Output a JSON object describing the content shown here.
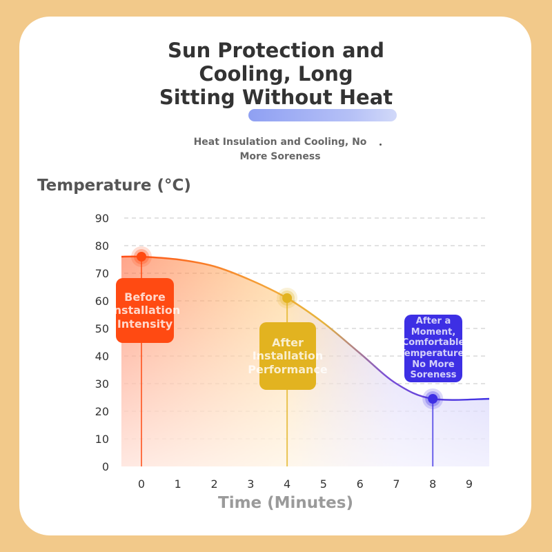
{
  "header": {
    "title_lines": [
      "Sun Protection and",
      "Cooling, Long",
      "Sitting Without Heat"
    ],
    "subtitle": "Heat Insulation and Cooling, No More Soreness"
  },
  "colors": {
    "page_background": "#f2c98a",
    "before": "#ff4a12",
    "after": "#e2b320",
    "moment": "#3d2fe4"
  },
  "callouts": {
    "before": "Before\nInstallation\nIntensity",
    "after": "After\nInstallation\nPerformance",
    "moment": "After a\nMoment,\nComfortable\nTemperature,\nNo More\nSoreness"
  },
  "chart_data": {
    "type": "area",
    "ylabel": "Temperature (°C)",
    "xlabel": "Time (Minutes)",
    "x_ticks": [
      0,
      1,
      2,
      3,
      4,
      5,
      6,
      7,
      8,
      9
    ],
    "y_ticks": [
      0,
      10,
      20,
      30,
      40,
      50,
      60,
      70,
      80,
      90
    ],
    "xlim": [
      0,
      9
    ],
    "ylim": [
      0,
      90
    ],
    "grid": "horizontal dashed",
    "curve": [
      {
        "x": -0.55,
        "y": 76
      },
      {
        "x": 0,
        "y": 76
      },
      {
        "x": 1,
        "y": 75
      },
      {
        "x": 2,
        "y": 72.5
      },
      {
        "x": 3,
        "y": 67.5
      },
      {
        "x": 4,
        "y": 61
      },
      {
        "x": 5,
        "y": 52
      },
      {
        "x": 6,
        "y": 41
      },
      {
        "x": 7,
        "y": 30
      },
      {
        "x": 8,
        "y": 24.5
      },
      {
        "x": 9.55,
        "y": 24.5
      }
    ],
    "highlights": [
      {
        "x": 0,
        "y": 76,
        "callout": "before"
      },
      {
        "x": 4,
        "y": 61,
        "callout": "after"
      },
      {
        "x": 8,
        "y": 24.5,
        "callout": "moment"
      }
    ]
  }
}
